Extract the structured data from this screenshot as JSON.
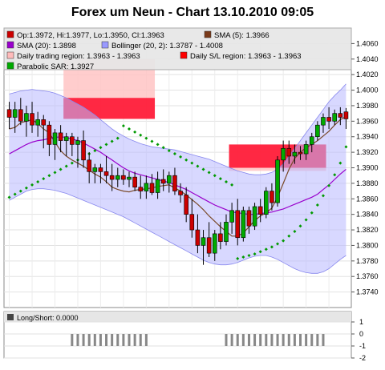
{
  "chart_data": {
    "type": "candlestick",
    "title": "Forex um Neun - Chart 13.10.2010 09:05",
    "main_panel": {
      "ylim": [
        1.372,
        1.408
      ],
      "y_ticks": [
        "1.3740",
        "1.3760",
        "1.3780",
        "1.3800",
        "1.3820",
        "1.3840",
        "1.3860",
        "1.3880",
        "1.3900",
        "1.3920",
        "1.3940",
        "1.3960",
        "1.3980",
        "1.4000",
        "1.4020",
        "1.4040",
        "1.4060"
      ],
      "y_tick_values": [
        1.374,
        1.376,
        1.378,
        1.38,
        1.382,
        1.384,
        1.386,
        1.388,
        1.39,
        1.392,
        1.394,
        1.396,
        1.398,
        1.4,
        1.402,
        1.404,
        1.406
      ],
      "legend": [
        {
          "text": "Op:1.3972, Hi:1.3977, Lo:1.3950, Cl:1.3963",
          "color": "#cc0000"
        },
        {
          "text": "SMA (5): 1.3966",
          "color": "#7a3a1a"
        },
        {
          "text": "SMA (20): 1.3898",
          "color": "#9900cc"
        },
        {
          "text": "Bollinger (20, 2): 1.3787 - 1.4008",
          "color": "#9999ff"
        },
        {
          "text": "Daily trading region: 1.3963 - 1.3963",
          "color": "#ffbbbb"
        },
        {
          "text": "Daily S/L region: 1.3963 - 1.3963",
          "color": "#ff0000"
        },
        {
          "text": "Parabolic SAR: 1.3927",
          "color": "#00aa00"
        }
      ],
      "series": [
        {
          "name": "SMA (5)",
          "color": "#7a4a2a",
          "values": [
            1.395,
            1.3952,
            1.3958,
            1.396,
            1.3962,
            1.3957,
            1.395,
            1.3945,
            1.3933,
            1.3922,
            1.3915,
            1.391,
            1.3906,
            1.3902,
            1.3897,
            1.3892,
            1.3888,
            1.3882,
            1.3875,
            1.3872,
            1.387,
            1.3869,
            1.3871,
            1.3872,
            1.3873,
            1.3874,
            1.3876,
            1.3877,
            1.3878,
            1.3874,
            1.387,
            1.3865,
            1.3859,
            1.3853,
            1.3846,
            1.3838,
            1.3831,
            1.3824,
            1.3818,
            1.3812,
            1.3812,
            1.3816,
            1.3824,
            1.3832,
            1.3838,
            1.3842,
            1.3848,
            1.3862,
            1.388,
            1.3898,
            1.3912,
            1.392,
            1.3926,
            1.393,
            1.3935,
            1.3941,
            1.3947,
            1.3955,
            1.3962,
            1.3966
          ]
        },
        {
          "name": "SMA (20)",
          "color": "#9900cc",
          "values": [
            1.3918,
            1.3922,
            1.3926,
            1.393,
            1.3933,
            1.3935,
            1.3936,
            1.3938,
            1.3939,
            1.394,
            1.3939,
            1.3937,
            1.3935,
            1.3932,
            1.3928,
            1.3924,
            1.392,
            1.3915,
            1.391,
            1.3905,
            1.39,
            1.3896,
            1.3893,
            1.3891,
            1.3889,
            1.3887,
            1.3885,
            1.3883,
            1.3881,
            1.3878,
            1.3875,
            1.3872,
            1.3868,
            1.3864,
            1.386,
            1.3856,
            1.3852,
            1.3849,
            1.3846,
            1.3843,
            1.3842,
            1.3841,
            1.384,
            1.384,
            1.3841,
            1.3842,
            1.3843,
            1.3845,
            1.3847,
            1.385,
            1.3853,
            1.3856,
            1.3859,
            1.3862,
            1.3866,
            1.3872,
            1.3878,
            1.3885,
            1.3892,
            1.3898
          ]
        },
        {
          "name": "Bollinger upper",
          "color": "#8888ee",
          "values": [
            1.3995,
            1.3997,
            1.3999,
            1.4,
            1.4001,
            1.4,
            1.3999,
            1.3998,
            1.3996,
            1.3993,
            1.399,
            1.3986,
            1.3982,
            1.3978,
            1.3973,
            1.3968,
            1.3962,
            1.3956,
            1.395,
            1.3945,
            1.3941,
            1.3937,
            1.3934,
            1.3931,
            1.3929,
            1.3927,
            1.3926,
            1.3925,
            1.3924,
            1.3923,
            1.3921,
            1.3919,
            1.3917,
            1.3915,
            1.3913,
            1.3911,
            1.3908,
            1.3905,
            1.3902,
            1.3899,
            1.3896,
            1.3894,
            1.3892,
            1.3891,
            1.3891,
            1.3892,
            1.3894,
            1.3898,
            1.3905,
            1.3915,
            1.3925,
            1.3935,
            1.3945,
            1.3955,
            1.3965,
            1.3975,
            1.3985,
            1.3993,
            1.4,
            1.4008
          ]
        },
        {
          "name": "Bollinger lower",
          "color": "#8888ee",
          "values": [
            1.3858,
            1.3862,
            1.3866,
            1.387,
            1.3872,
            1.3873,
            1.3873,
            1.3872,
            1.3871,
            1.3869,
            1.3867,
            1.3864,
            1.3861,
            1.3858,
            1.3855,
            1.3852,
            1.3849,
            1.3846,
            1.3843,
            1.384,
            1.3837,
            1.3833,
            1.3829,
            1.3825,
            1.3821,
            1.3817,
            1.3813,
            1.3809,
            1.3805,
            1.3801,
            1.3797,
            1.3793,
            1.3789,
            1.3785,
            1.3781,
            1.3778,
            1.3776,
            1.3775,
            1.3775,
            1.3776,
            1.3778,
            1.3781,
            1.3784,
            1.3786,
            1.3787,
            1.3787,
            1.3785,
            1.3782,
            1.3778,
            1.3774,
            1.377,
            1.3767,
            1.3765,
            1.3764,
            1.3764,
            1.3766,
            1.377,
            1.3776,
            1.3782,
            1.3787
          ]
        },
        {
          "name": "Parabolic SAR",
          "color": "#009900",
          "values": [
            1.3862,
            1.3866,
            1.387,
            1.3874,
            1.3878,
            1.3882,
            1.3886,
            1.389,
            1.3894,
            1.3898,
            1.3902,
            1.3906,
            1.391,
            1.3914,
            1.3918,
            1.3922,
            1.3926,
            1.393,
            1.3934,
            1.3938,
            1.3954,
            1.395,
            1.3946,
            1.3942,
            1.3938,
            1.3934,
            1.393,
            1.3926,
            1.3922,
            1.3918,
            1.3914,
            1.391,
            1.3906,
            1.3902,
            1.3898,
            1.3894,
            1.389,
            1.3886,
            1.3882,
            1.3878,
            1.3783,
            1.3785,
            1.3787,
            1.3789,
            1.3792,
            1.3795,
            1.3798,
            1.3802,
            1.3806,
            1.3812,
            1.3818,
            1.3825,
            1.3833,
            1.3842,
            1.3852,
            1.3864,
            1.3877,
            1.3891,
            1.3906,
            1.3927
          ]
        }
      ],
      "candles": [
        [
          1.3975,
          1.3985,
          1.395,
          1.3965
        ],
        [
          1.3965,
          1.3985,
          1.3945,
          1.3975
        ],
        [
          1.3975,
          1.399,
          1.3955,
          1.396
        ],
        [
          1.396,
          1.398,
          1.394,
          1.397
        ],
        [
          1.397,
          1.3985,
          1.3945,
          1.3955
        ],
        [
          1.3955,
          1.3972,
          1.394,
          1.3962
        ],
        [
          1.3962,
          1.3968,
          1.3925,
          1.3955
        ],
        [
          1.3955,
          1.396,
          1.3915,
          1.393
        ],
        [
          1.393,
          1.395,
          1.391,
          1.3945
        ],
        [
          1.3945,
          1.3955,
          1.392,
          1.3935
        ],
        [
          1.3935,
          1.3945,
          1.3915,
          1.394
        ],
        [
          1.394,
          1.3945,
          1.3915,
          1.393
        ],
        [
          1.393,
          1.394,
          1.39,
          1.3935
        ],
        [
          1.3935,
          1.3948,
          1.39,
          1.391
        ],
        [
          1.391,
          1.392,
          1.388,
          1.3895
        ],
        [
          1.3895,
          1.3905,
          1.388,
          1.39
        ],
        [
          1.39,
          1.3905,
          1.388,
          1.3895
        ],
        [
          1.3895,
          1.3915,
          1.388,
          1.389
        ],
        [
          1.389,
          1.3905,
          1.387,
          1.3885
        ],
        [
          1.3885,
          1.39,
          1.3875,
          1.389
        ],
        [
          1.389,
          1.3898,
          1.3878,
          1.3885
        ],
        [
          1.3885,
          1.3895,
          1.3875,
          1.3888
        ],
        [
          1.3888,
          1.3895,
          1.387,
          1.3875
        ],
        [
          1.3875,
          1.389,
          1.386,
          1.387
        ],
        [
          1.387,
          1.389,
          1.386,
          1.388
        ],
        [
          1.388,
          1.3892,
          1.3865,
          1.3868
        ],
        [
          1.3868,
          1.3895,
          1.386,
          1.3885
        ],
        [
          1.3885,
          1.3898,
          1.387,
          1.388
        ],
        [
          1.388,
          1.3895,
          1.3868,
          1.389
        ],
        [
          1.389,
          1.39,
          1.3865,
          1.387
        ],
        [
          1.387,
          1.388,
          1.3855,
          1.3865
        ],
        [
          1.3865,
          1.3875,
          1.383,
          1.384
        ],
        [
          1.384,
          1.386,
          1.381,
          1.382
        ],
        [
          1.382,
          1.384,
          1.379,
          1.38
        ],
        [
          1.38,
          1.382,
          1.3775,
          1.381
        ],
        [
          1.381,
          1.383,
          1.3785,
          1.379
        ],
        [
          1.379,
          1.382,
          1.378,
          1.3815
        ],
        [
          1.3815,
          1.383,
          1.3795,
          1.3805
        ],
        [
          1.3805,
          1.384,
          1.38,
          1.383
        ],
        [
          1.383,
          1.3855,
          1.3815,
          1.3845
        ],
        [
          1.3845,
          1.386,
          1.38,
          1.381
        ],
        [
          1.381,
          1.385,
          1.3805,
          1.3845
        ],
        [
          1.3845,
          1.385,
          1.3815,
          1.3825
        ],
        [
          1.3825,
          1.3855,
          1.382,
          1.385
        ],
        [
          1.385,
          1.386,
          1.383,
          1.384
        ],
        [
          1.384,
          1.3875,
          1.3835,
          1.387
        ],
        [
          1.387,
          1.388,
          1.3845,
          1.3855
        ],
        [
          1.3855,
          1.3915,
          1.385,
          1.391
        ],
        [
          1.391,
          1.3935,
          1.3895,
          1.3925
        ],
        [
          1.3925,
          1.3935,
          1.3905,
          1.3915
        ],
        [
          1.3915,
          1.393,
          1.3905,
          1.392
        ],
        [
          1.392,
          1.3928,
          1.391,
          1.3918
        ],
        [
          1.3918,
          1.3935,
          1.391,
          1.393
        ],
        [
          1.393,
          1.3945,
          1.392,
          1.394
        ],
        [
          1.394,
          1.396,
          1.3935,
          1.3955
        ],
        [
          1.3955,
          1.397,
          1.3945,
          1.3965
        ],
        [
          1.3965,
          1.3978,
          1.395,
          1.396
        ],
        [
          1.396,
          1.3975,
          1.3955,
          1.397
        ],
        [
          1.397,
          1.3978,
          1.3955,
          1.3965
        ],
        [
          1.3972,
          1.3977,
          1.395,
          1.3963
        ]
      ],
      "trading_regions": [
        {
          "from_bar": 10,
          "to_bar": 25,
          "low": 1.3963,
          "high": 1.404
        },
        {
          "from_bar": 39,
          "to_bar": 55,
          "low": 1.3896,
          "high": 1.393
        }
      ],
      "sl_regions": [
        {
          "from_bar": 10,
          "to_bar": 25,
          "low": 1.3963,
          "high": 1.399
        },
        {
          "from_bar": 39,
          "to_bar": 55,
          "low": 1.39,
          "high": 1.393
        }
      ]
    },
    "lower_panel": {
      "legend": "Long/Short: 0.0000",
      "ylim": [
        -2,
        1
      ],
      "y_ticks": [
        "1",
        "0",
        "-1",
        "-2"
      ],
      "y_tick_values": [
        1,
        0,
        -1,
        -2
      ],
      "groups": [
        {
          "from_bar": 11,
          "to_bar": 24,
          "value": -1
        },
        {
          "from_bar": 38,
          "to_bar": 55,
          "value": -1
        }
      ]
    },
    "n_bars": 60,
    "grid": true
  }
}
